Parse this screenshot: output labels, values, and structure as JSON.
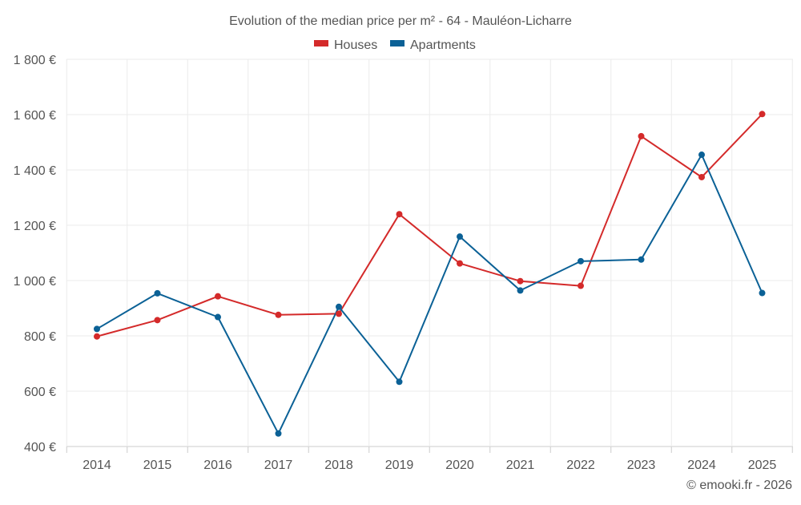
{
  "chart_data": {
    "type": "line",
    "title": "Evolution of the median price per m² - 64 - Mauléon-Licharre",
    "x": [
      "2014",
      "2015",
      "2016",
      "2017",
      "2018",
      "2019",
      "2020",
      "2021",
      "2022",
      "2023",
      "2024",
      "2025"
    ],
    "series": [
      {
        "name": "Houses",
        "color": "#d42a2a",
        "values": [
          798,
          857,
          943,
          876,
          880,
          1240,
          1062,
          998,
          981,
          1522,
          1374,
          1602
        ]
      },
      {
        "name": "Apartments",
        "color": "#0b6196",
        "values": [
          825,
          954,
          868,
          447,
          905,
          634,
          1159,
          964,
          1070,
          1076,
          1455,
          955
        ]
      }
    ],
    "ylim": [
      400,
      1800
    ],
    "yticks": [
      400,
      600,
      800,
      1000,
      1200,
      1400,
      1600,
      1800
    ],
    "ytick_labels": [
      "400 €",
      "600 €",
      "800 €",
      "1 000 €",
      "1 200 €",
      "1 400 €",
      "1 600 €",
      "1 800 €"
    ],
    "xlabel": "",
    "ylabel": "",
    "legend_position": "top-center",
    "grid": true,
    "credit": "© emooki.fr - 2026"
  }
}
